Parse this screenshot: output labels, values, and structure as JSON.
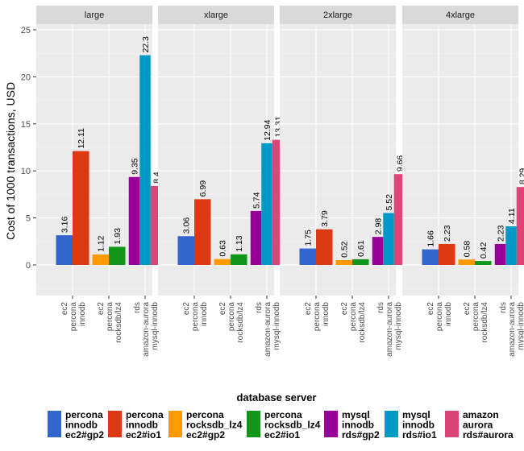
{
  "chart_data": {
    "type": "bar",
    "title": "",
    "xlabel": "",
    "ylabel": "Cost of 1000 transactions, USD",
    "ylim": [
      -3.3,
      26.2
    ],
    "yticks": [
      0,
      5,
      10,
      15,
      20,
      25
    ],
    "grid": true,
    "facets": [
      "large",
      "xlarge",
      "2xlarge",
      "4xlarge"
    ],
    "categories": [
      [
        "ec2",
        "percona",
        "innodb"
      ],
      [
        "ec2",
        "percona",
        "rocksdb/lz4"
      ],
      [
        "rds",
        "amazon-aurora",
        "mysql-innodb"
      ]
    ],
    "legend": {
      "title": "database server",
      "position": "bottom",
      "entries": [
        {
          "key": "percona_innodb_gp2",
          "lines": [
            "percona",
            "innodb",
            "ec2#gp2"
          ],
          "color": "#3366cc"
        },
        {
          "key": "percona_innodb_io1",
          "lines": [
            "percona",
            "innodb",
            "ec2#io1"
          ],
          "color": "#dc3912"
        },
        {
          "key": "percona_rocksdb_gp2",
          "lines": [
            "percona",
            "rocksdb_lz4",
            "ec2#gp2"
          ],
          "color": "#ff9900"
        },
        {
          "key": "percona_rocksdb_io1",
          "lines": [
            "percona",
            "rocksdb_lz4",
            "ec2#io1"
          ],
          "color": "#109618"
        },
        {
          "key": "mysql_innodb_gp2",
          "lines": [
            "mysql",
            "innodb",
            "rds#gp2"
          ],
          "color": "#990099"
        },
        {
          "key": "mysql_innodb_io1",
          "lines": [
            "mysql",
            "innodb",
            "rds#io1"
          ],
          "color": "#0099c6"
        },
        {
          "key": "amazon_aurora",
          "lines": [
            "amazon",
            "aurora",
            "rds#aurora"
          ],
          "color": "#dd4477"
        }
      ]
    },
    "groups": [
      {
        "category": 0,
        "series": [
          "percona_innodb_gp2",
          "percona_innodb_io1"
        ]
      },
      {
        "category": 1,
        "series": [
          "percona_rocksdb_gp2",
          "percona_rocksdb_io1"
        ]
      },
      {
        "category": 2,
        "series": [
          "mysql_innodb_gp2",
          "mysql_innodb_io1",
          "amazon_aurora"
        ]
      }
    ],
    "series": [
      {
        "name": "percona innodb ec2#gp2",
        "key": "percona_innodb_gp2",
        "values": [
          3.16,
          3.06,
          1.75,
          1.66
        ]
      },
      {
        "name": "percona innodb ec2#io1",
        "key": "percona_innodb_io1",
        "values": [
          12.11,
          6.99,
          3.79,
          2.23
        ]
      },
      {
        "name": "percona rocksdb_lz4 ec2#gp2",
        "key": "percona_rocksdb_gp2",
        "values": [
          1.12,
          0.63,
          0.52,
          0.58
        ]
      },
      {
        "name": "percona rocksdb_lz4 ec2#io1",
        "key": "percona_rocksdb_io1",
        "values": [
          1.93,
          1.13,
          0.61,
          0.42
        ]
      },
      {
        "name": "mysql innodb rds#gp2",
        "key": "mysql_innodb_gp2",
        "values": [
          9.35,
          5.74,
          2.98,
          2.23
        ]
      },
      {
        "name": "mysql innodb rds#io1",
        "key": "mysql_innodb_io1",
        "values": [
          22.3,
          12.94,
          5.52,
          4.11
        ]
      },
      {
        "name": "amazon aurora rds#aurora",
        "key": "amazon_aurora",
        "values": [
          8.4,
          13.31,
          9.66,
          8.29
        ]
      }
    ],
    "data_labels": [
      [
        "3.16",
        "12.11",
        "1.12",
        "1.93",
        "9.35",
        "22.3",
        "8.4"
      ],
      [
        "3.06",
        "6.99",
        "0.63",
        "1.13",
        "5.74",
        "12.94",
        "13.31"
      ],
      [
        "1.75",
        "3.79",
        "0.52",
        "0.61",
        "2.98",
        "5.52",
        "9.66"
      ],
      [
        "1.66",
        "2.23",
        "0.58",
        "0.42",
        "2.23",
        "4.11",
        "8.29"
      ]
    ]
  }
}
